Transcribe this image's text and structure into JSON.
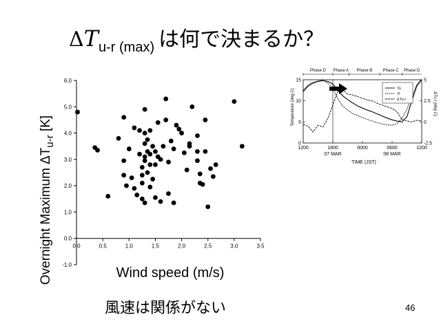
{
  "slide": {
    "title_delta": "Δ",
    "title_var": "T",
    "title_sub": "u-r (max)",
    "title_rest": "は何で決まるか？",
    "caption": "風速は関係がない",
    "page_number": "46"
  },
  "chart_data": [
    {
      "type": "scatter",
      "xlabel": "Wind speed (m/s)",
      "ylabel": "Overnight Maximum ΔTu-r [K]",
      "ylabel_main": "Overnight Maximum ΔT",
      "ylabel_sub": "u-r",
      "ylabel_unit": " [K]",
      "xlim": [
        0.0,
        3.5
      ],
      "ylim": [
        -1.0,
        6.0
      ],
      "xticks": [
        "0.0",
        "0.5",
        "1.0",
        "1.5",
        "2.0",
        "2.5",
        "3.0",
        "3.5"
      ],
      "yticks": [
        "-1.0",
        "0.0",
        "1.0",
        "2.0",
        "3.0",
        "4.0",
        "5.0",
        "6.0"
      ],
      "grid": false,
      "points": [
        [
          0.02,
          4.8
        ],
        [
          0.35,
          3.45
        ],
        [
          0.4,
          3.35
        ],
        [
          0.6,
          1.6
        ],
        [
          0.8,
          3.8
        ],
        [
          0.9,
          4.6
        ],
        [
          0.9,
          2.95
        ],
        [
          0.9,
          2.4
        ],
        [
          0.95,
          2.0
        ],
        [
          1.0,
          3.4
        ],
        [
          1.05,
          2.3
        ],
        [
          1.1,
          4.2
        ],
        [
          1.1,
          1.9
        ],
        [
          1.15,
          1.65
        ],
        [
          1.2,
          4.1
        ],
        [
          1.2,
          3.2
        ],
        [
          1.25,
          2.7
        ],
        [
          1.25,
          2.4
        ],
        [
          1.25,
          2.1
        ],
        [
          1.25,
          1.5
        ],
        [
          1.3,
          4.9
        ],
        [
          1.3,
          4.0
        ],
        [
          1.3,
          3.6
        ],
        [
          1.3,
          3.1
        ],
        [
          1.3,
          2.95
        ],
        [
          1.3,
          1.35
        ],
        [
          1.35,
          3.75
        ],
        [
          1.35,
          3.3
        ],
        [
          1.35,
          2.5
        ],
        [
          1.4,
          4.1
        ],
        [
          1.4,
          3.2
        ],
        [
          1.4,
          2.8
        ],
        [
          1.4,
          1.95
        ],
        [
          1.45,
          3.5
        ],
        [
          1.45,
          2.25
        ],
        [
          1.5,
          3.3
        ],
        [
          1.5,
          2.8
        ],
        [
          1.5,
          1.55
        ],
        [
          1.55,
          4.4
        ],
        [
          1.55,
          3.1
        ],
        [
          1.6,
          3.0
        ],
        [
          1.6,
          1.4
        ],
        [
          1.65,
          3.5
        ],
        [
          1.7,
          5.3
        ],
        [
          1.7,
          4.5
        ],
        [
          1.75,
          2.9
        ],
        [
          1.75,
          1.7
        ],
        [
          1.8,
          3.7
        ],
        [
          1.85,
          3.4
        ],
        [
          1.85,
          1.35
        ],
        [
          1.9,
          4.3
        ],
        [
          1.95,
          4.15
        ],
        [
          2.0,
          4.0
        ],
        [
          2.05,
          3.25
        ],
        [
          2.1,
          2.6
        ],
        [
          2.15,
          3.6
        ],
        [
          2.15,
          3.5
        ],
        [
          2.2,
          5.0
        ],
        [
          2.3,
          3.3
        ],
        [
          2.3,
          2.95
        ],
        [
          2.3,
          3.9
        ],
        [
          2.35,
          2.1
        ],
        [
          2.35,
          2.45
        ],
        [
          2.4,
          2.05
        ],
        [
          2.45,
          3.3
        ],
        [
          2.45,
          4.5
        ],
        [
          2.5,
          1.2
        ],
        [
          2.55,
          2.65
        ],
        [
          2.6,
          2.35
        ],
        [
          2.65,
          2.8
        ],
        [
          3.0,
          5.2
        ],
        [
          3.15,
          3.5
        ]
      ]
    },
    {
      "type": "line",
      "title": "",
      "phases": [
        "Phase D",
        "Phase A",
        "Phase B",
        "Phase C",
        "Phase D"
      ],
      "xlabel": "TIME (JST)",
      "xticks": [
        "1200",
        "1800",
        "0000",
        "0600",
        "1200"
      ],
      "date_labels": [
        "07 MAR",
        "08 MAR"
      ],
      "ylabel_left": "Temperature (deg C)",
      "ylabel_right": "ΔTu-r (deg C)",
      "ylim_left": [
        0,
        15
      ],
      "yticks_left": [
        "0",
        "5",
        "10",
        "15"
      ],
      "ylim_right": [
        -2.5,
        5
      ],
      "yticks_right": [
        "-2.5",
        "0",
        "2.5",
        "5"
      ],
      "x_hours": [
        0,
        24
      ],
      "legend": [
        "Tu",
        "Tr",
        "ΔTu-r"
      ],
      "series": [
        {
          "name": "Tu",
          "axis": "left",
          "x": [
            0,
            1,
            2,
            3,
            4,
            5,
            6,
            7,
            8,
            9,
            10,
            11,
            12,
            13,
            14,
            15,
            16,
            17,
            18,
            19,
            20,
            21,
            22,
            23,
            24
          ],
          "y": [
            12.2,
            13.5,
            14.2,
            14.6,
            14.8,
            14.6,
            14.0,
            12.5,
            11.2,
            10.3,
            9.5,
            8.8,
            8.3,
            7.8,
            7.4,
            6.9,
            6.4,
            5.9,
            5.5,
            5.2,
            5.0,
            6.2,
            10.0,
            13.5,
            15.0
          ]
        },
        {
          "name": "Tr",
          "axis": "left",
          "x": [
            0,
            1,
            2,
            3,
            4,
            5,
            6,
            7,
            8,
            9,
            10,
            11,
            12,
            13,
            14,
            15,
            16,
            17,
            18,
            19,
            20,
            21,
            22,
            23,
            24
          ],
          "y": [
            12.5,
            13.8,
            14.4,
            14.7,
            14.9,
            14.2,
            13.0,
            10.5,
            8.8,
            7.8,
            7.0,
            6.5,
            6.0,
            5.6,
            5.2,
            4.8,
            4.5,
            4.3,
            4.2,
            4.6,
            5.8,
            8.0,
            11.0,
            13.8,
            15.2
          ]
        },
        {
          "name": "ΔTu-r",
          "axis": "right",
          "x": [
            0,
            1,
            2,
            3,
            4,
            5,
            6,
            7,
            8,
            9,
            10,
            11,
            12,
            13,
            14,
            15,
            16,
            17,
            18,
            19,
            20,
            21,
            22,
            23,
            24
          ],
          "y": [
            -0.3,
            -0.5,
            -1.2,
            -0.4,
            -0.6,
            0.4,
            2.0,
            3.6,
            3.8,
            3.3,
            3.2,
            3.0,
            2.8,
            2.6,
            2.5,
            2.2,
            2.0,
            1.8,
            1.6,
            1.2,
            0.3,
            0.1,
            0.0,
            0.2,
            0.1
          ]
        }
      ]
    }
  ]
}
